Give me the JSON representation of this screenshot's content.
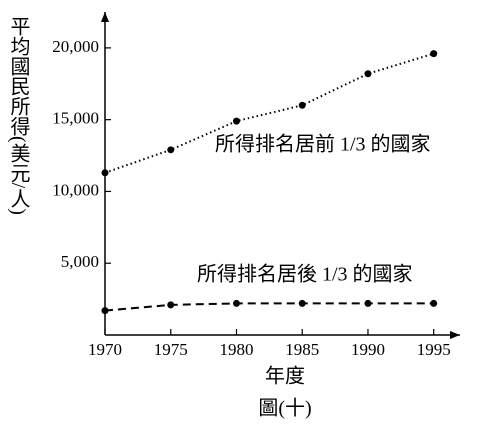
{
  "chart_data": {
    "type": "line",
    "y_label": "平均國民所得(美元/人)",
    "x_label": "年度",
    "caption": "圖(十)",
    "x": [
      1970,
      1975,
      1980,
      1985,
      1990,
      1995
    ],
    "series": [
      {
        "name": "所得排名居前 1/3 的國家",
        "color": "#000000",
        "line_style": "dotted",
        "values": [
          11300,
          12900,
          14900,
          16000,
          18200,
          19600
        ]
      },
      {
        "name": "所得排名居後 1/3 的國家",
        "color": "#000000",
        "line_style": "dashed",
        "values": [
          1700,
          2100,
          2200,
          2200,
          2200,
          2200
        ]
      }
    ],
    "xlim": [
      1970,
      1997
    ],
    "ylim": [
      0,
      22500
    ],
    "xticks": [
      1970,
      1975,
      1980,
      1985,
      1990,
      1995
    ],
    "yticks": [
      {
        "value": 5000,
        "label": "5,000"
      },
      {
        "value": 10000,
        "label": "10,000"
      },
      {
        "value": 15000,
        "label": "15,000"
      },
      {
        "value": 20000,
        "label": "20,000"
      }
    ]
  }
}
